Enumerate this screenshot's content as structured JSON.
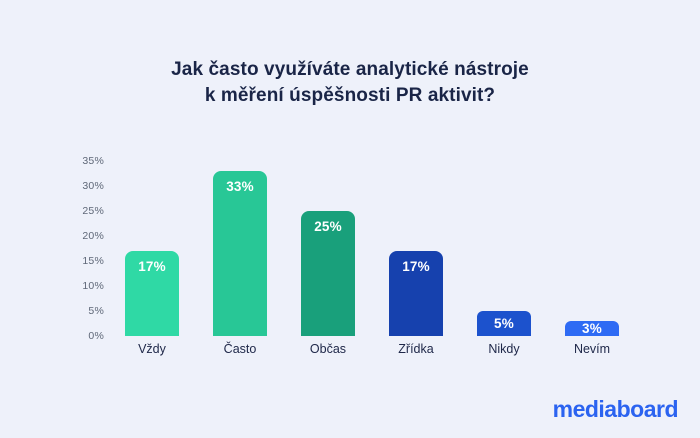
{
  "title": {
    "lines": [
      "Jak často využíváte analytické nástroje",
      "k měření úspěšnosti PR aktivit?"
    ]
  },
  "chart_data": {
    "type": "bar",
    "title": "Jak často využíváte analytické nástroje k měření úspěšnosti PR aktivit?",
    "categories": [
      "Vždy",
      "Často",
      "Občas",
      "Zřídka",
      "Nikdy",
      "Nevím"
    ],
    "values": [
      17,
      33,
      25,
      17,
      5,
      3
    ],
    "value_labels": [
      "17%",
      "33%",
      "25%",
      "17%",
      "5%",
      "3%"
    ],
    "bar_colors": [
      "#2fd9a5",
      "#28c796",
      "#19a07b",
      "#1641ae",
      "#1c52cd",
      "#2e6bf4"
    ],
    "yticks": [
      "35%",
      "30%",
      "25%",
      "20%",
      "15%",
      "10%",
      "5%",
      "0%"
    ],
    "ytick_values": [
      35,
      30,
      25,
      20,
      15,
      10,
      5,
      0
    ],
    "ylim": [
      0,
      35
    ],
    "xlabel": "",
    "ylabel": "",
    "grid": false,
    "legend": "none"
  },
  "logo": {
    "text": "mediaboard",
    "color": "#2b63f0"
  },
  "colors": {
    "background": "#eef1fa",
    "title_text": "#1a2547",
    "tick_text": "#5f6878",
    "category_text": "#20294a",
    "value_label_text": "#ffffff"
  }
}
